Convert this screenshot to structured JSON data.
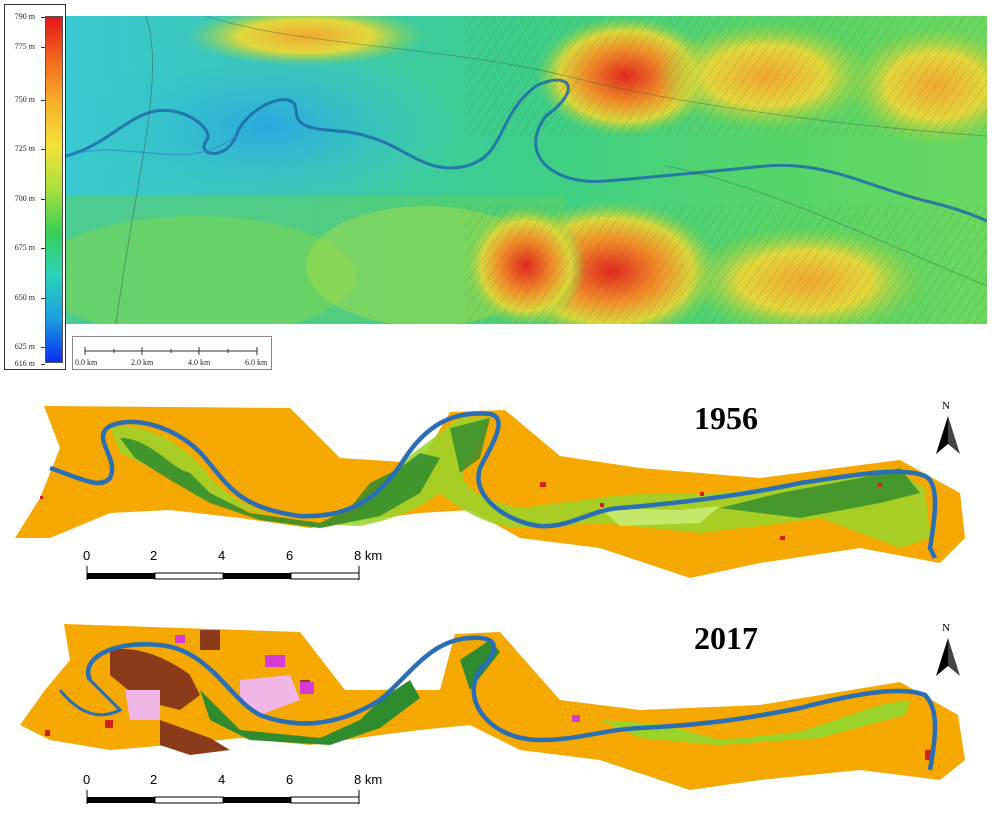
{
  "dem_legend": {
    "labels": [
      "790 m",
      "775 m",
      "750 m",
      "725 m",
      "700 m",
      "675 m",
      "650 m",
      "625 m",
      "616 m"
    ],
    "colors_top_to_bottom": [
      "#e8141a",
      "#f06a1e",
      "#f7b02a",
      "#f4e23a",
      "#a8e03c",
      "#38d05a",
      "#2bd2b8",
      "#1a9ee0",
      "#0a2cf0"
    ]
  },
  "dem_scalebar": {
    "labels": [
      "0.0 km",
      "2.0 km",
      "4.0 km",
      "6.0 km"
    ]
  },
  "maps": [
    {
      "year": "1956",
      "scale_labels": [
        "0",
        "2",
        "4",
        "6",
        "8 km"
      ],
      "north_label": "N"
    },
    {
      "year": "2017",
      "scale_labels": [
        "0",
        "2",
        "4",
        "6",
        "8 km"
      ],
      "north_label": "N"
    }
  ],
  "colors": {
    "agriculture": "#f5a800",
    "river": "#2a6fb5",
    "riparian_forest": "#2e8b2e",
    "shrub": "#9ad32a",
    "light_green": "#c6e86a",
    "urban_brown": "#8b3a1a",
    "magenta": "#d63bd6",
    "pink": "#f2b6e6",
    "red_patch": "#d62020"
  }
}
